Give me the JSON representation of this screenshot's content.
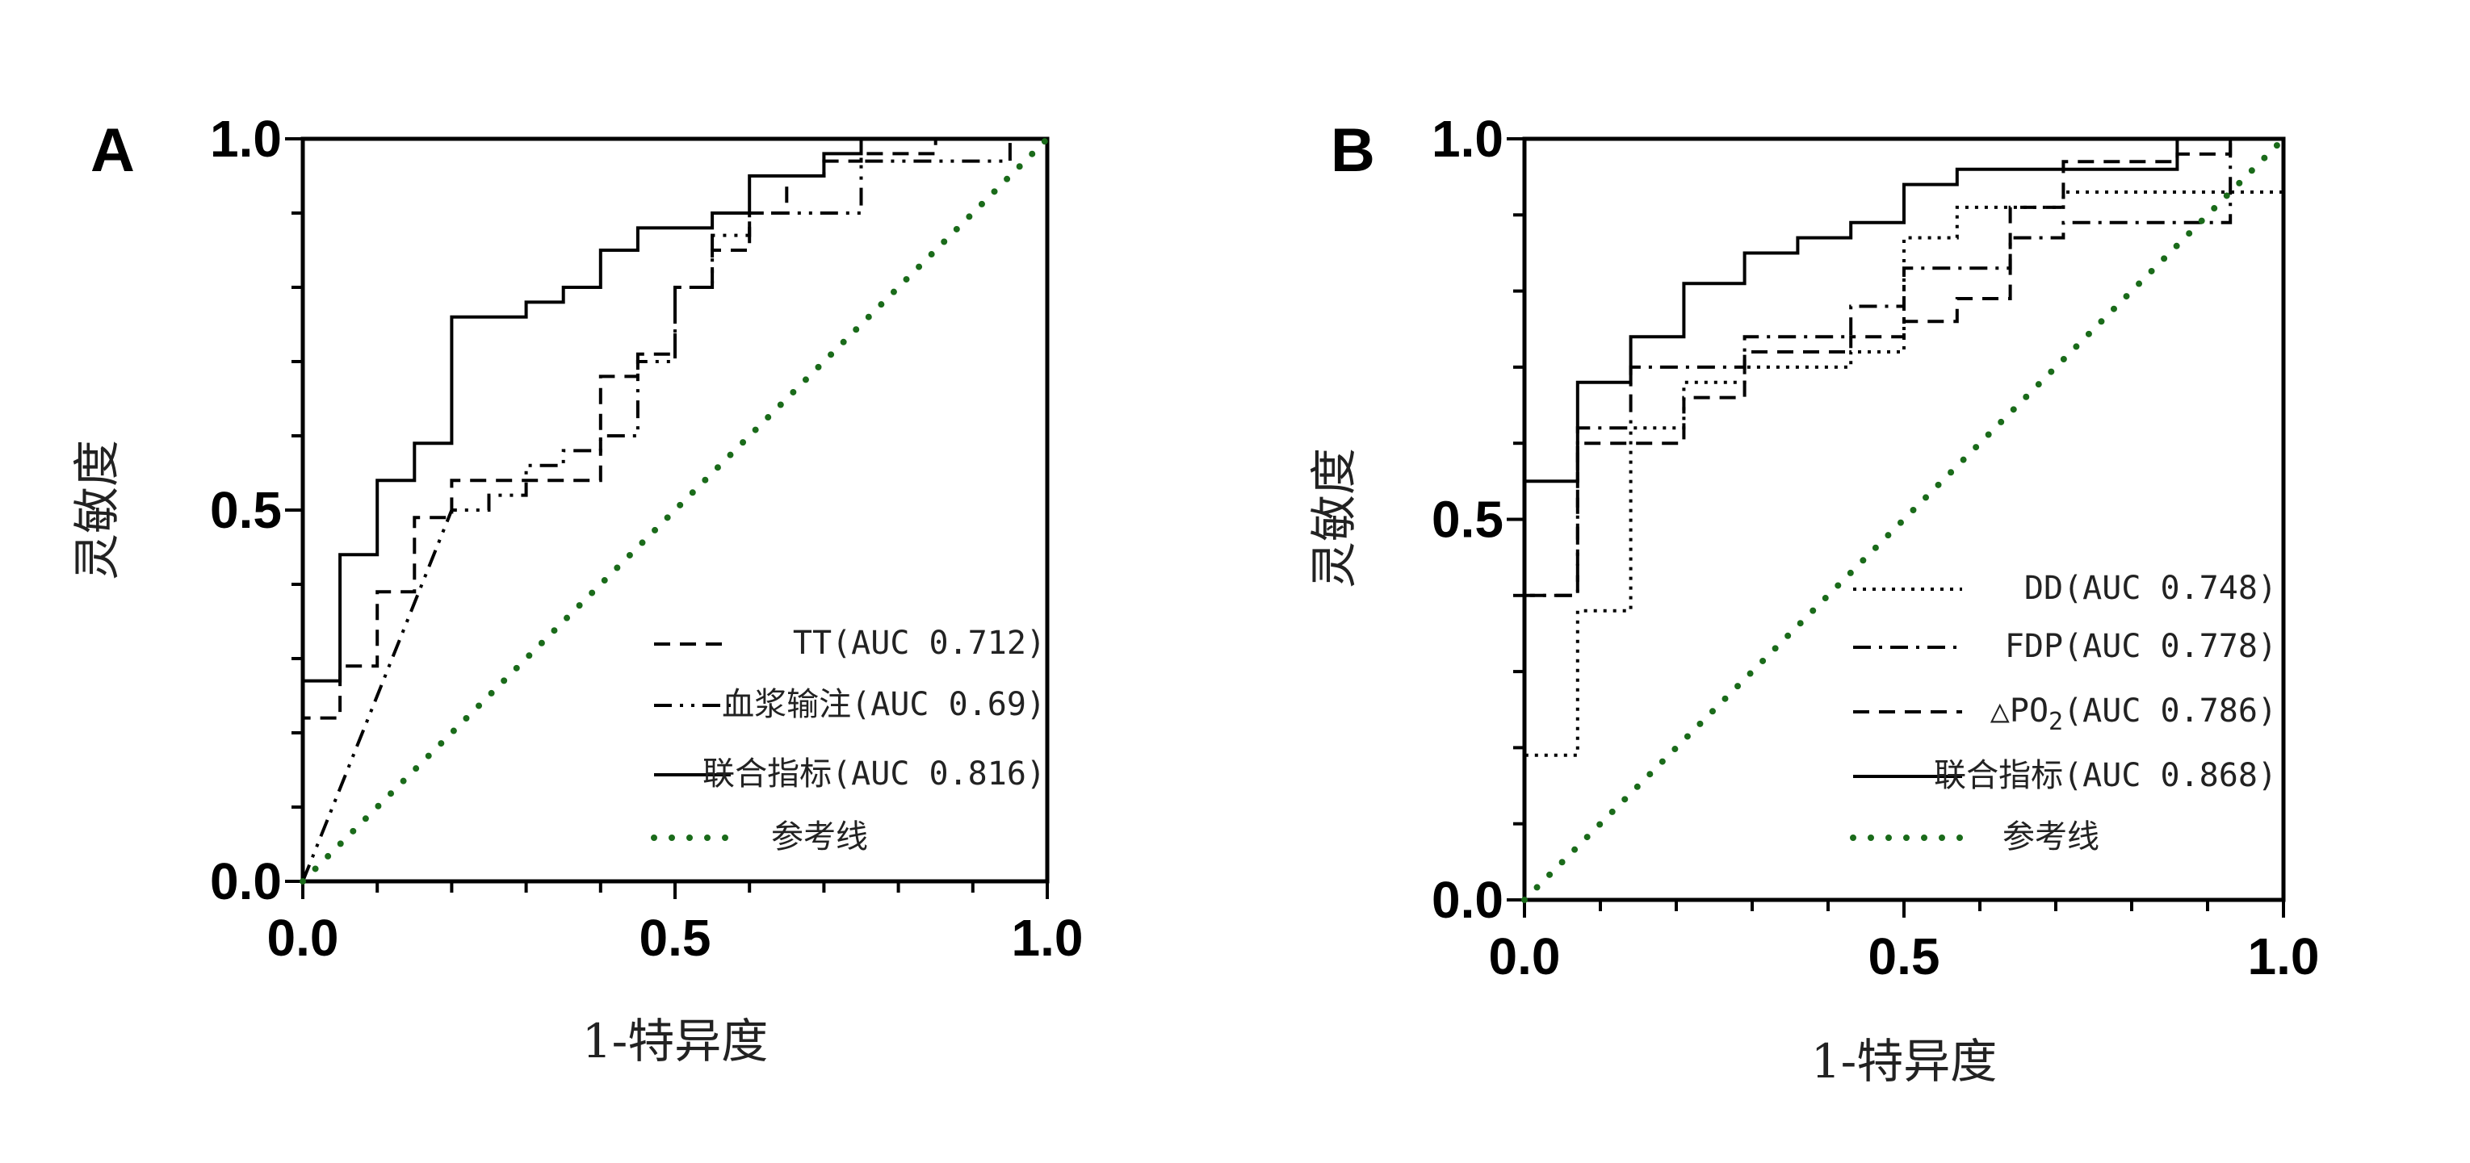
{
  "chart_data": [
    {
      "panel": "A",
      "type": "line",
      "xlabel": "1-特异度",
      "ylabel": "灵敏度",
      "xlim": [
        0,
        1
      ],
      "ylim": [
        0,
        1
      ],
      "xticks": [
        "0.0",
        "0.5",
        "1.0"
      ],
      "yticks": [
        "0.0",
        "0.5",
        "1.0"
      ],
      "legend_placement": "bottom-right",
      "series": [
        {
          "name": "TT(AUC 0.712)",
          "style": "dashed",
          "color": "#000000",
          "x": [
            0,
            0,
            0.05,
            0.05,
            0.1,
            0.1,
            0.15,
            0.15,
            0.2,
            0.2,
            0.4,
            0.4,
            0.45,
            0.45,
            0.5,
            0.5,
            0.55,
            0.55,
            0.6,
            0.6,
            0.65,
            0.65,
            0.7,
            0.7,
            0.75,
            0.75,
            0.85,
            0.85,
            1.0
          ],
          "y": [
            0,
            0.22,
            0.22,
            0.29,
            0.29,
            0.39,
            0.39,
            0.49,
            0.49,
            0.54,
            0.54,
            0.68,
            0.68,
            0.71,
            0.71,
            0.8,
            0.8,
            0.85,
            0.85,
            0.9,
            0.9,
            0.95,
            0.95,
            0.97,
            0.97,
            0.98,
            0.98,
            1.0,
            1.0
          ]
        },
        {
          "name": "血浆输注(AUC 0.69)",
          "style": "dashdotdot",
          "color": "#000000",
          "x": [
            0,
            0.2,
            0.25,
            0.25,
            0.3,
            0.3,
            0.35,
            0.35,
            0.4,
            0.4,
            0.45,
            0.45,
            0.5,
            0.5,
            0.55,
            0.55,
            0.6,
            0.6,
            0.65,
            0.65,
            0.7,
            0.7,
            0.75,
            0.75,
            0.95,
            0.95,
            1.0
          ],
          "y": [
            0,
            0.5,
            0.5,
            0.52,
            0.52,
            0.56,
            0.56,
            0.58,
            0.58,
            0.6,
            0.6,
            0.7,
            0.7,
            0.8,
            0.8,
            0.87,
            0.87,
            0.9,
            0.9,
            0.9,
            0.9,
            0.9,
            0.9,
            0.97,
            0.97,
            1.0,
            1.0
          ]
        },
        {
          "name": "联合指标(AUC 0.816)",
          "style": "solid",
          "color": "#000000",
          "x": [
            0,
            0,
            0.05,
            0.05,
            0.1,
            0.1,
            0.15,
            0.15,
            0.2,
            0.2,
            0.3,
            0.3,
            0.35,
            0.35,
            0.4,
            0.4,
            0.45,
            0.45,
            0.55,
            0.55,
            0.6,
            0.6,
            0.7,
            0.7,
            0.75,
            0.75,
            1.0
          ],
          "y": [
            0,
            0.27,
            0.27,
            0.44,
            0.44,
            0.54,
            0.54,
            0.59,
            0.59,
            0.76,
            0.76,
            0.78,
            0.78,
            0.8,
            0.8,
            0.85,
            0.85,
            0.88,
            0.88,
            0.9,
            0.9,
            0.95,
            0.95,
            0.98,
            0.98,
            1.0,
            1.0
          ]
        },
        {
          "name": "参考线",
          "style": "dotted",
          "color": "#1a6b1a",
          "x": [
            0,
            1
          ],
          "y": [
            0,
            1
          ]
        }
      ]
    },
    {
      "panel": "B",
      "type": "line",
      "xlabel": "1-特异度",
      "ylabel": "灵敏度",
      "xlim": [
        0,
        1
      ],
      "ylim": [
        0,
        1
      ],
      "xticks": [
        "0.0",
        "0.5",
        "1.0"
      ],
      "yticks": [
        "0.0",
        "0.5",
        "1.0"
      ],
      "legend_placement": "bottom-right",
      "series": [
        {
          "name": "DD(AUC 0.748)",
          "style": "dotted-fine",
          "color": "#000000",
          "x": [
            0,
            0,
            0.07,
            0.07,
            0.14,
            0.14,
            0.21,
            0.21,
            0.29,
            0.29,
            0.36,
            0.36,
            0.43,
            0.43,
            0.5,
            0.5,
            0.57,
            0.57,
            0.64,
            0.64,
            0.71,
            0.71,
            0.93,
            0.93,
            1.0
          ],
          "y": [
            0,
            0.19,
            0.19,
            0.38,
            0.38,
            0.62,
            0.62,
            0.68,
            0.68,
            0.7,
            0.7,
            0.7,
            0.7,
            0.72,
            0.72,
            0.87,
            0.87,
            0.91,
            0.91,
            0.91,
            0.91,
            0.93,
            0.93,
            0.93,
            0.93
          ]
        },
        {
          "name": "FDP(AUC 0.778)",
          "style": "dashdot",
          "color": "#000000",
          "x": [
            0,
            0,
            0.07,
            0.07,
            0.14,
            0.14,
            0.29,
            0.29,
            0.43,
            0.43,
            0.5,
            0.5,
            0.64,
            0.64,
            0.71,
            0.71,
            0.93,
            0.93,
            1.0
          ],
          "y": [
            0,
            0.4,
            0.4,
            0.62,
            0.62,
            0.7,
            0.7,
            0.74,
            0.74,
            0.78,
            0.78,
            0.83,
            0.83,
            0.87,
            0.87,
            0.89,
            0.89,
            1.0,
            1.0
          ]
        },
        {
          "name": "△PO2(AUC 0.786)",
          "style": "dashed",
          "color": "#000000",
          "x": [
            0,
            0,
            0.07,
            0.07,
            0.21,
            0.21,
            0.29,
            0.29,
            0.43,
            0.43,
            0.5,
            0.5,
            0.57,
            0.57,
            0.64,
            0.64,
            0.71,
            0.71,
            0.86,
            0.86,
            0.93,
            0.93,
            1.0
          ],
          "y": [
            0,
            0.4,
            0.4,
            0.6,
            0.6,
            0.66,
            0.66,
            0.72,
            0.72,
            0.74,
            0.74,
            0.76,
            0.76,
            0.79,
            0.79,
            0.91,
            0.91,
            0.97,
            0.97,
            0.98,
            0.98,
            1.0,
            1.0
          ]
        },
        {
          "name": "联合指标(AUC 0.868)",
          "style": "solid",
          "color": "#000000",
          "x": [
            0,
            0,
            0.07,
            0.07,
            0.14,
            0.14,
            0.21,
            0.21,
            0.29,
            0.29,
            0.36,
            0.36,
            0.43,
            0.43,
            0.5,
            0.5,
            0.57,
            0.57,
            0.86,
            0.86,
            1.0
          ],
          "y": [
            0,
            0.55,
            0.55,
            0.68,
            0.68,
            0.74,
            0.74,
            0.81,
            0.81,
            0.85,
            0.85,
            0.87,
            0.87,
            0.89,
            0.89,
            0.94,
            0.94,
            0.96,
            0.96,
            1.0,
            1.0
          ]
        },
        {
          "name": "参考线",
          "style": "dotted",
          "color": "#1a6b1a",
          "x": [
            0,
            1
          ],
          "y": [
            0,
            1
          ]
        }
      ]
    }
  ]
}
